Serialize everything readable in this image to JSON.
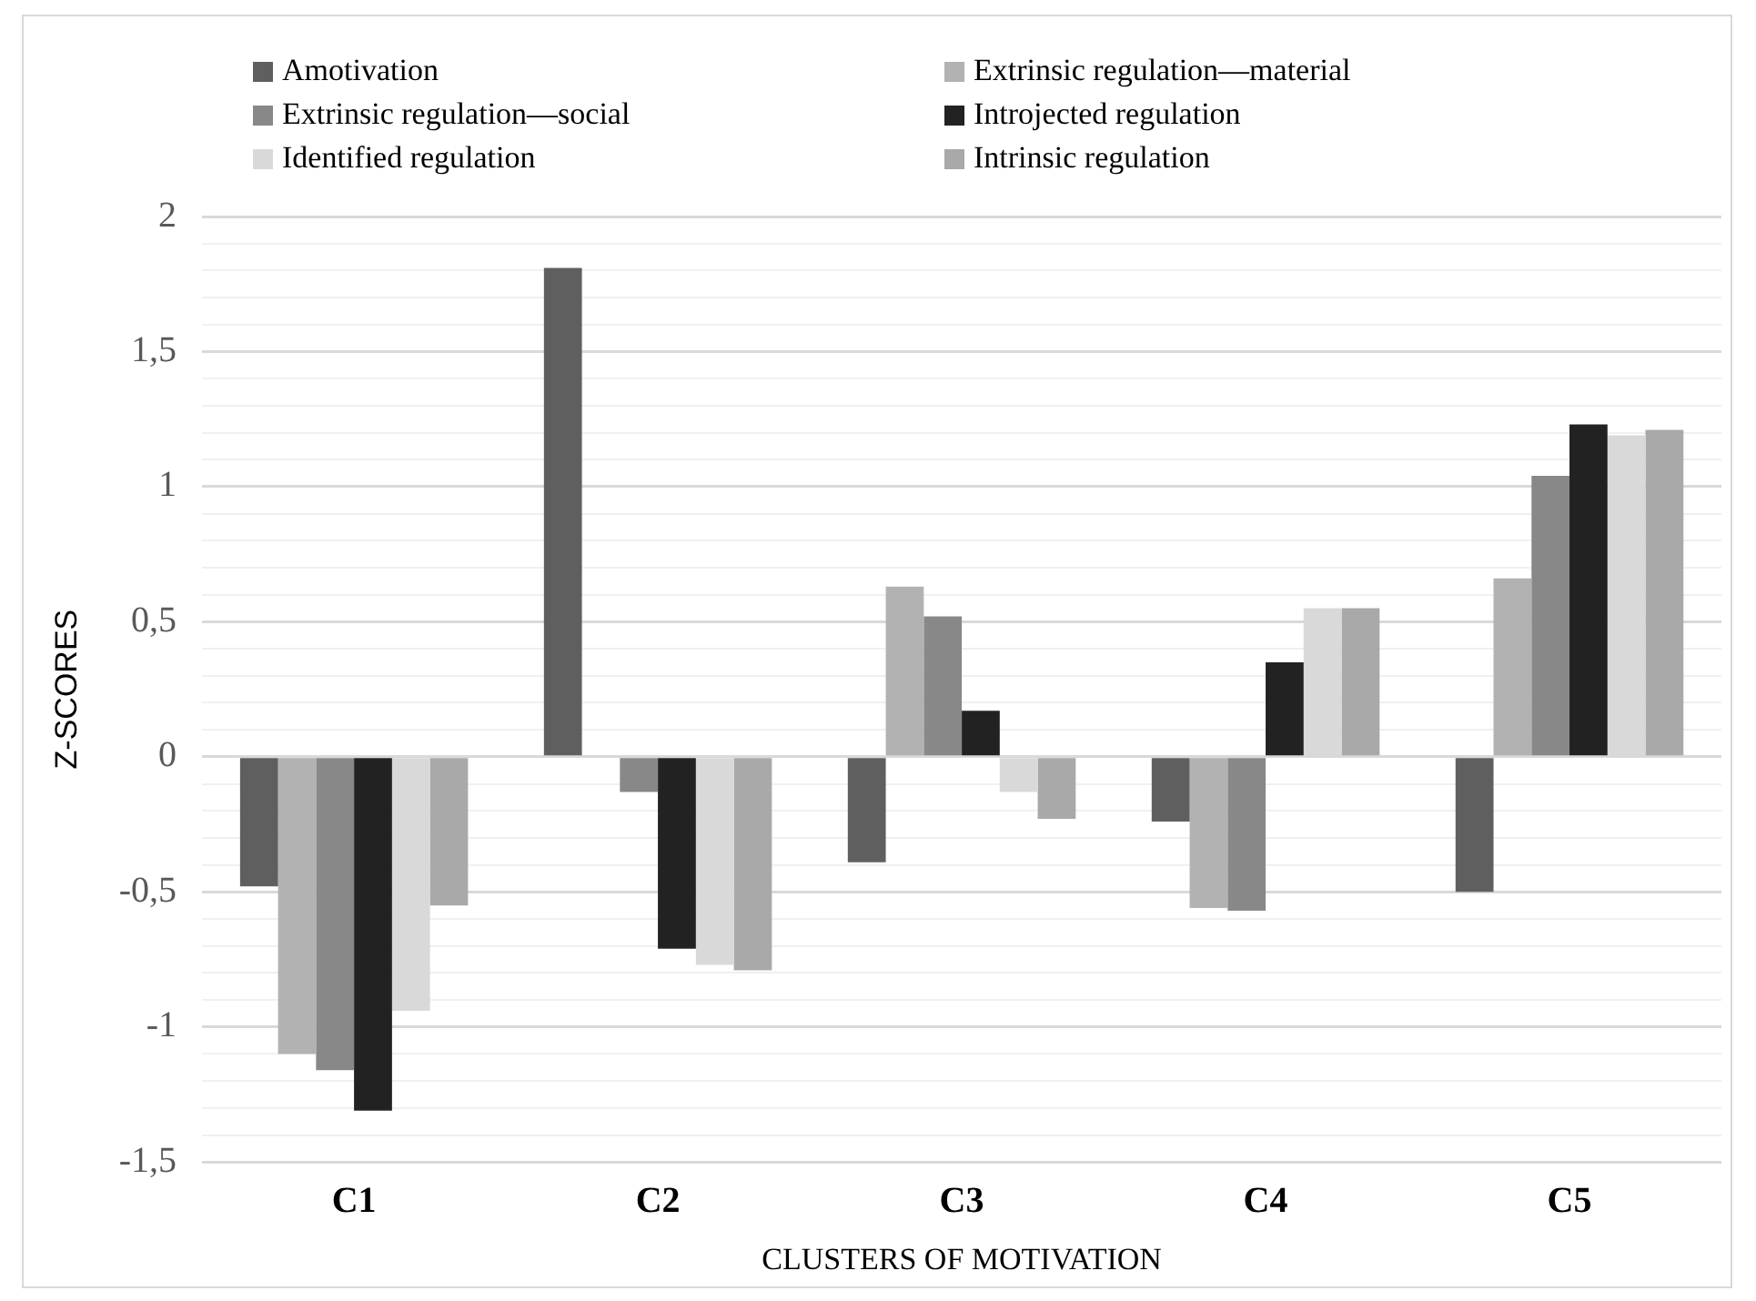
{
  "chart_data": {
    "type": "bar",
    "xlabel": "CLUSTERS OF MOTIVATION",
    "ylabel": "Z-SCORES",
    "categories": [
      "C1",
      "C2",
      "C3",
      "C4",
      "C5"
    ],
    "series": [
      {
        "name": "Amotivation",
        "color": "#5f5f5f",
        "values": [
          -0.48,
          1.81,
          -0.39,
          -0.24,
          -0.5
        ]
      },
      {
        "name": "Extrinsic regulation—material",
        "color": "#b2b2b2",
        "values": [
          -1.1,
          0,
          0.63,
          -0.56,
          0.66
        ]
      },
      {
        "name": "Extrinsic regulation—social",
        "color": "#888888",
        "values": [
          -1.16,
          -0.13,
          0.52,
          -0.57,
          1.04
        ]
      },
      {
        "name": "Introjected regulation",
        "color": "#222222",
        "values": [
          -1.31,
          -0.71,
          0.17,
          0.35,
          1.23
        ]
      },
      {
        "name": "Identified regulation",
        "color": "#d9d9d9",
        "values": [
          -0.94,
          -0.77,
          -0.13,
          0.55,
          1.19
        ]
      },
      {
        "name": "Intrinsic regulation",
        "color": "#a9a9a9",
        "values": [
          -0.55,
          -0.79,
          -0.23,
          0.55,
          1.21
        ]
      }
    ],
    "ylim": [
      -1.5,
      2
    ],
    "yticks": [
      {
        "value": -1.5,
        "label": "-1,5"
      },
      {
        "value": -1.4,
        "label": null
      },
      {
        "value": -1.3,
        "label": null
      },
      {
        "value": -1.2,
        "label": null
      },
      {
        "value": -1.1,
        "label": null
      },
      {
        "value": -1,
        "label": "-1"
      },
      {
        "value": -0.9,
        "label": null
      },
      {
        "value": -0.8,
        "label": null
      },
      {
        "value": -0.7,
        "label": null
      },
      {
        "value": -0.6,
        "label": null
      },
      {
        "value": -0.5,
        "label": "-0,5"
      },
      {
        "value": -0.4,
        "label": null
      },
      {
        "value": -0.3,
        "label": null
      },
      {
        "value": -0.2,
        "label": null
      },
      {
        "value": -0.1,
        "label": null
      },
      0,
      {
        "value": 0.1,
        "label": null
      },
      {
        "value": 0.2,
        "label": null
      },
      {
        "value": 0.3,
        "label": null
      },
      {
        "value": 0.4,
        "label": null
      },
      {
        "value": 0.5,
        "label": "0,5"
      },
      {
        "value": 0.6,
        "label": null
      },
      {
        "value": 0.7,
        "label": null
      },
      {
        "value": 0.8,
        "label": null
      },
      {
        "value": 0.9,
        "label": null
      },
      1,
      {
        "value": 1.1,
        "label": null
      },
      {
        "value": 1.2,
        "label": null
      },
      {
        "value": 1.3,
        "label": null
      },
      {
        "value": 1.4,
        "label": null
      },
      {
        "value": 1.5,
        "label": "1,5"
      },
      {
        "value": 1.6,
        "label": null
      },
      {
        "value": 1.7,
        "label": null
      },
      {
        "value": 1.8,
        "label": null
      },
      {
        "value": 1.9,
        "label": null
      },
      2
    ],
    "grid": "y",
    "legend": "top"
  }
}
